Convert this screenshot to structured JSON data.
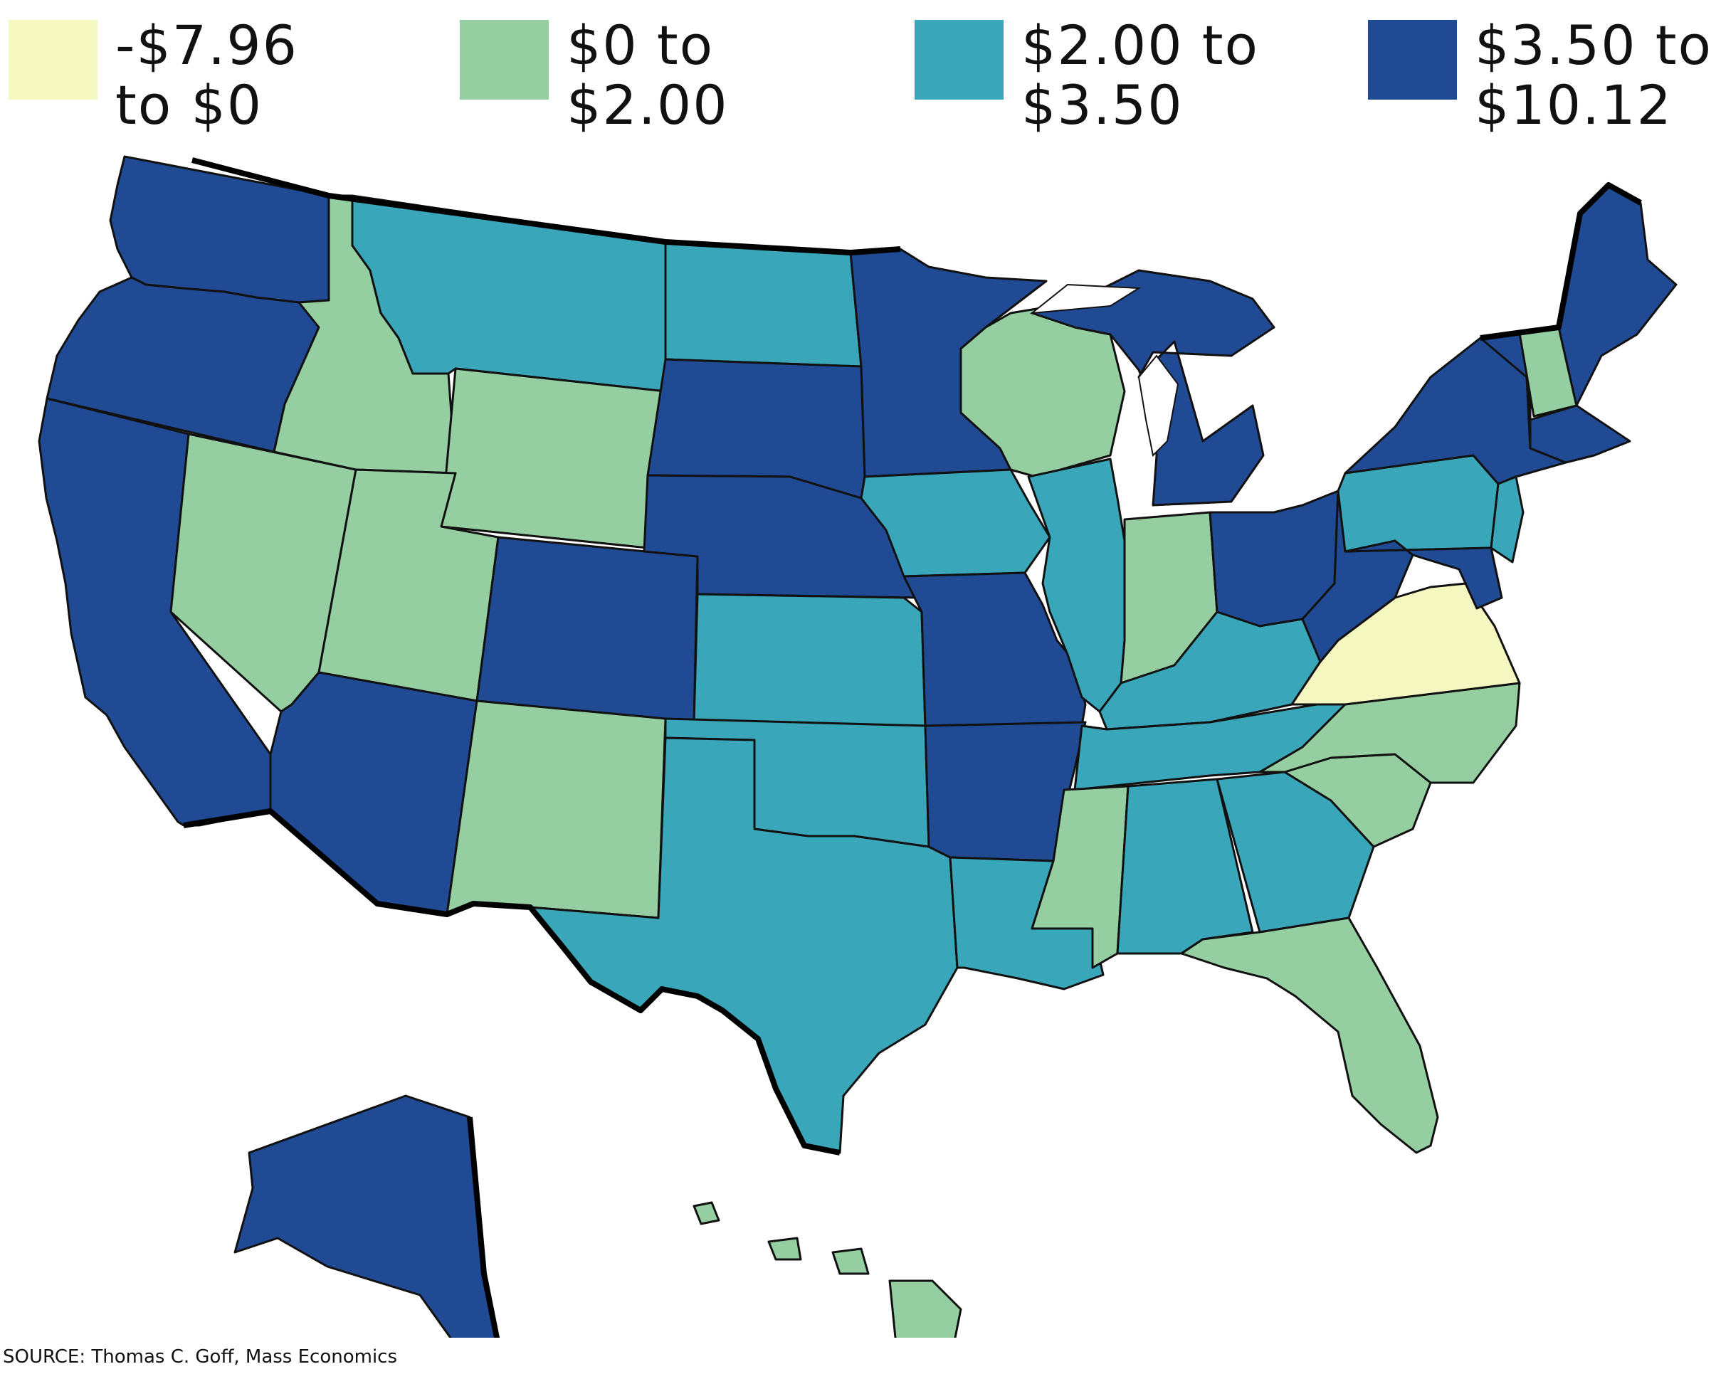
{
  "legend": {
    "items": [
      {
        "label_line1": "-$7.96",
        "label_line2": "to $0",
        "color": "#f4f8c0"
      },
      {
        "label_line1": "$0 to",
        "label_line2": "$2.00",
        "color": "#95cea1"
      },
      {
        "label_line1": "$2.00 to",
        "label_line2": "$3.50",
        "color": "#3aa6b9"
      },
      {
        "label_line1": "$3.50 to",
        "label_line2": "$10.12",
        "color": "#204a94"
      }
    ]
  },
  "map": {
    "regions": [
      {
        "id": "washington",
        "class": 3
      },
      {
        "id": "oregon",
        "class": 3
      },
      {
        "id": "california",
        "class": 3
      },
      {
        "id": "nevada",
        "class": 1
      },
      {
        "id": "idaho",
        "class": 1
      },
      {
        "id": "montana",
        "class": 2
      },
      {
        "id": "wyoming",
        "class": 1
      },
      {
        "id": "utah",
        "class": 1
      },
      {
        "id": "arizona",
        "class": 3
      },
      {
        "id": "colorado",
        "class": 3
      },
      {
        "id": "new-mexico",
        "class": 1
      },
      {
        "id": "north-dakota",
        "class": 2
      },
      {
        "id": "south-dakota",
        "class": 3
      },
      {
        "id": "nebraska",
        "class": 3
      },
      {
        "id": "kansas",
        "class": 2
      },
      {
        "id": "oklahoma",
        "class": 2
      },
      {
        "id": "texas",
        "class": 2
      },
      {
        "id": "minnesota",
        "class": 3
      },
      {
        "id": "iowa",
        "class": 2
      },
      {
        "id": "missouri",
        "class": 3
      },
      {
        "id": "arkansas",
        "class": 3
      },
      {
        "id": "louisiana",
        "class": 2
      },
      {
        "id": "wisconsin",
        "class": 1
      },
      {
        "id": "illinois",
        "class": 2
      },
      {
        "id": "michigan",
        "class": 3
      },
      {
        "id": "indiana",
        "class": 1
      },
      {
        "id": "ohio",
        "class": 3
      },
      {
        "id": "kentucky",
        "class": 2
      },
      {
        "id": "tennessee",
        "class": 2
      },
      {
        "id": "mississippi",
        "class": 1
      },
      {
        "id": "alabama",
        "class": 2
      },
      {
        "id": "georgia",
        "class": 2
      },
      {
        "id": "florida",
        "class": 1
      },
      {
        "id": "south-carolina",
        "class": 1
      },
      {
        "id": "north-carolina",
        "class": 1
      },
      {
        "id": "virginia",
        "class": 0
      },
      {
        "id": "west-virginia",
        "class": 3
      },
      {
        "id": "pennsylvania",
        "class": 2
      },
      {
        "id": "new-york",
        "class": 3
      },
      {
        "id": "vermont",
        "class": 3
      },
      {
        "id": "new-hampshire",
        "class": 1
      },
      {
        "id": "maine",
        "class": 3
      },
      {
        "id": "massachusetts",
        "class": 3
      },
      {
        "id": "new-jersey",
        "class": 2
      },
      {
        "id": "maryland",
        "class": 3
      },
      {
        "id": "alaska",
        "class": 3
      },
      {
        "id": "hawaii",
        "class": 1
      }
    ]
  },
  "source": "SOURCE: Thomas C. Goff, Mass Economics"
}
